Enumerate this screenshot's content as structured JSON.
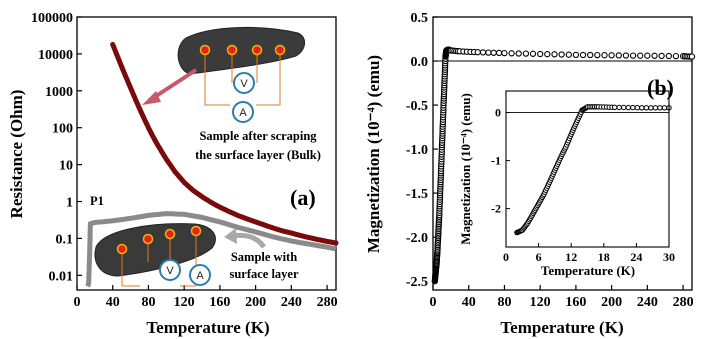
{
  "chart_data": [
    {
      "panel": "(a)",
      "type": "line",
      "xlabel": "Temperature (K)",
      "ylabel": "Resistance (Ohm)",
      "xlim": [
        0,
        290
      ],
      "ylim": [
        0.004,
        100000
      ],
      "yscale": "log",
      "xticks": [
        0,
        40,
        80,
        120,
        160,
        200,
        240,
        280
      ],
      "yticks": [
        {
          "value": 100000,
          "label": "100000"
        },
        {
          "value": 10000,
          "label": "10000"
        },
        {
          "value": 1000,
          "label": "1000"
        },
        {
          "value": 100,
          "label": "100"
        },
        {
          "value": 10,
          "label": "10"
        },
        {
          "value": 1,
          "label": "1"
        },
        {
          "value": 0.1,
          "label": "0.1"
        },
        {
          "value": 0.01,
          "label": "0.01"
        }
      ],
      "series": [
        {
          "color": "#7b0a0a",
          "x": [
            40,
            45,
            50,
            55,
            60,
            65,
            70,
            75,
            80,
            85,
            90,
            100,
            110,
            120,
            130,
            140,
            150,
            160,
            170,
            180,
            190,
            200,
            210,
            220,
            230,
            240,
            250,
            260,
            270,
            280,
            290
          ],
          "y": [
            18000,
            9000,
            4500,
            2300,
            1200,
            620,
            330,
            180,
            100,
            58,
            35,
            14,
            6.3,
            3.3,
            2.0,
            1.35,
            0.95,
            0.7,
            0.54,
            0.42,
            0.34,
            0.28,
            0.23,
            0.19,
            0.16,
            0.14,
            0.12,
            0.105,
            0.093,
            0.083,
            0.075
          ]
        },
        {
          "color": "#8a8a8a",
          "x": [
            12,
            13,
            14,
            15,
            20,
            40,
            60,
            80,
            100,
            120,
            140,
            160,
            180,
            200,
            220,
            240,
            260,
            280,
            290
          ],
          "y": [
            0.005,
            0.006,
            0.03,
            0.25,
            0.27,
            0.3,
            0.35,
            0.42,
            0.47,
            0.45,
            0.37,
            0.28,
            0.2,
            0.15,
            0.11,
            0.085,
            0.07,
            0.058,
            0.052
          ]
        }
      ],
      "annotations": {
        "p1": "P1",
        "bulk_line1": "Sample after scraping",
        "bulk_line2": "the surface layer (Bulk)",
        "surf_line1": "Sample with",
        "surf_line2": "surface layer",
        "voltmeter": "V",
        "ammeter": "A"
      }
    },
    {
      "panel": "(b)",
      "type": "scatter",
      "xlabel": "Temperature (K)",
      "ylabel": "Magnetization (10⁻⁴) (emu)",
      "xlim": [
        0,
        290
      ],
      "ylim": [
        -2.6,
        0.5
      ],
      "xticks": [
        0,
        40,
        80,
        120,
        160,
        200,
        240,
        280
      ],
      "yticks": [
        0.5,
        0.0,
        -0.5,
        -1.0,
        -1.5,
        -2.0,
        -2.5
      ],
      "ytick_labels": [
        "0.5",
        "0.0",
        "-0.5",
        "-1.0",
        "-1.5",
        "-2.0",
        "-2.5"
      ],
      "series": [
        {
          "x": [
            2,
            3,
            4,
            5,
            6,
            7,
            8,
            9,
            10,
            11,
            12,
            13,
            14,
            15,
            17,
            20,
            30,
            50,
            80,
            120,
            160,
            200,
            240,
            280,
            290
          ],
          "y": [
            -2.5,
            -2.4,
            -2.3,
            -2.15,
            -1.95,
            -1.75,
            -1.5,
            -1.25,
            -0.98,
            -0.72,
            -0.45,
            -0.2,
            0.05,
            0.12,
            0.13,
            0.12,
            0.11,
            0.1,
            0.09,
            0.08,
            0.07,
            0.065,
            0.06,
            0.055,
            0.05
          ]
        }
      ],
      "inset": {
        "xlabel": "Temperature (K)",
        "ylabel": "Magnetization (10⁻⁴) (emu)",
        "xlim": [
          0,
          30
        ],
        "ylim": [
          -2.8,
          0.45
        ],
        "xticks": [
          0,
          6,
          12,
          18,
          24,
          30
        ],
        "yticks": [
          0,
          -1,
          -2
        ],
        "ytick_labels": [
          "0",
          "-1",
          "-2"
        ],
        "x": [
          2,
          3,
          4,
          5,
          6,
          7,
          8,
          9,
          10,
          11,
          12,
          13,
          14,
          15,
          17,
          20,
          25,
          30
        ],
        "y": [
          -2.5,
          -2.45,
          -2.3,
          -2.1,
          -1.9,
          -1.7,
          -1.45,
          -1.2,
          -0.95,
          -0.72,
          -0.45,
          -0.2,
          0.05,
          0.12,
          0.12,
          0.11,
          0.1,
          0.1
        ]
      }
    }
  ]
}
